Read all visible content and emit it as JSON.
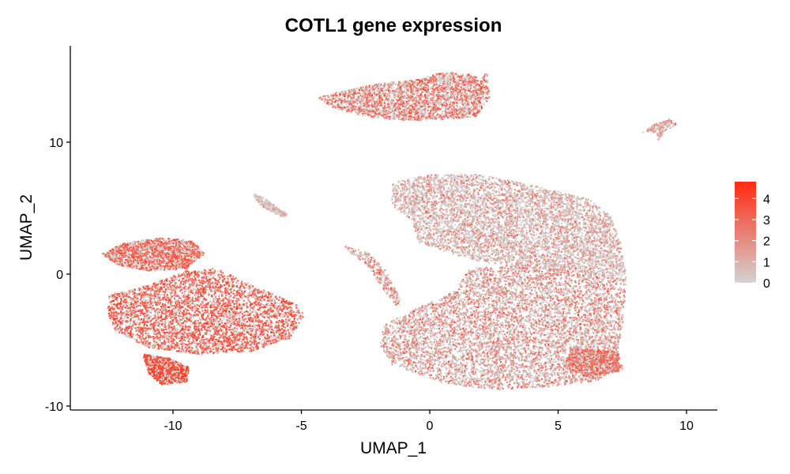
{
  "chart_data": {
    "type": "scatter",
    "title": "COTL1 gene expression",
    "xlabel": "UMAP_1",
    "ylabel": "UMAP_2",
    "xlim": [
      -14,
      11.2
    ],
    "ylim": [
      -10.3,
      17.3
    ],
    "x_ticks": [
      -10,
      -5,
      0,
      5,
      10
    ],
    "y_ticks": [
      -10,
      0,
      10
    ],
    "x_tick_labels": [
      "-10",
      "-5",
      "0",
      "5",
      "10"
    ],
    "y_tick_labels": [
      "-10",
      "0",
      "10"
    ],
    "grid": false,
    "legend": {
      "position": "right",
      "type": "colorbar",
      "min": 0,
      "max": 4.8,
      "ticks": [
        0,
        1,
        2,
        3,
        4
      ],
      "tick_labels": [
        "0",
        "1",
        "2",
        "3",
        "4"
      ],
      "low_color": "#d3d3d3",
      "high_color": "#ff2a10"
    },
    "clusters": [
      {
        "name": "top cluster",
        "center": [
          -0.5,
          13.5
        ],
        "mean_expression": 2.3
      },
      {
        "name": "left cluster upper",
        "center": [
          -11.5,
          1.5
        ],
        "mean_expression": 3.0
      },
      {
        "name": "left cluster main",
        "center": [
          -10.5,
          -3.0
        ],
        "mean_expression": 3.4
      },
      {
        "name": "left cluster bottom",
        "center": [
          -10.0,
          -7.0
        ],
        "mean_expression": 3.8
      },
      {
        "name": "left cluster right arm",
        "center": [
          -6.5,
          -3.0
        ],
        "mean_expression": 2.0
      },
      {
        "name": "large right cluster upper",
        "center": [
          3.0,
          3.5
        ],
        "mean_expression": 1.2
      },
      {
        "name": "large right cluster lower",
        "center": [
          3.5,
          -4.5
        ],
        "mean_expression": 1.6
      },
      {
        "name": "large right cluster bottom-right",
        "center": [
          6.5,
          -6.5
        ],
        "mean_expression": 2.6
      },
      {
        "name": "small cluster near (-7, 5)",
        "center": [
          -6.5,
          5.3
        ],
        "mean_expression": 1.0
      },
      {
        "name": "small cluster near (9, 11)",
        "center": [
          9.0,
          11.3
        ],
        "mean_expression": 1.8
      },
      {
        "name": "mid scattered strand",
        "center": [
          -2.0,
          -1.5
        ],
        "mean_expression": 1.8
      }
    ]
  }
}
